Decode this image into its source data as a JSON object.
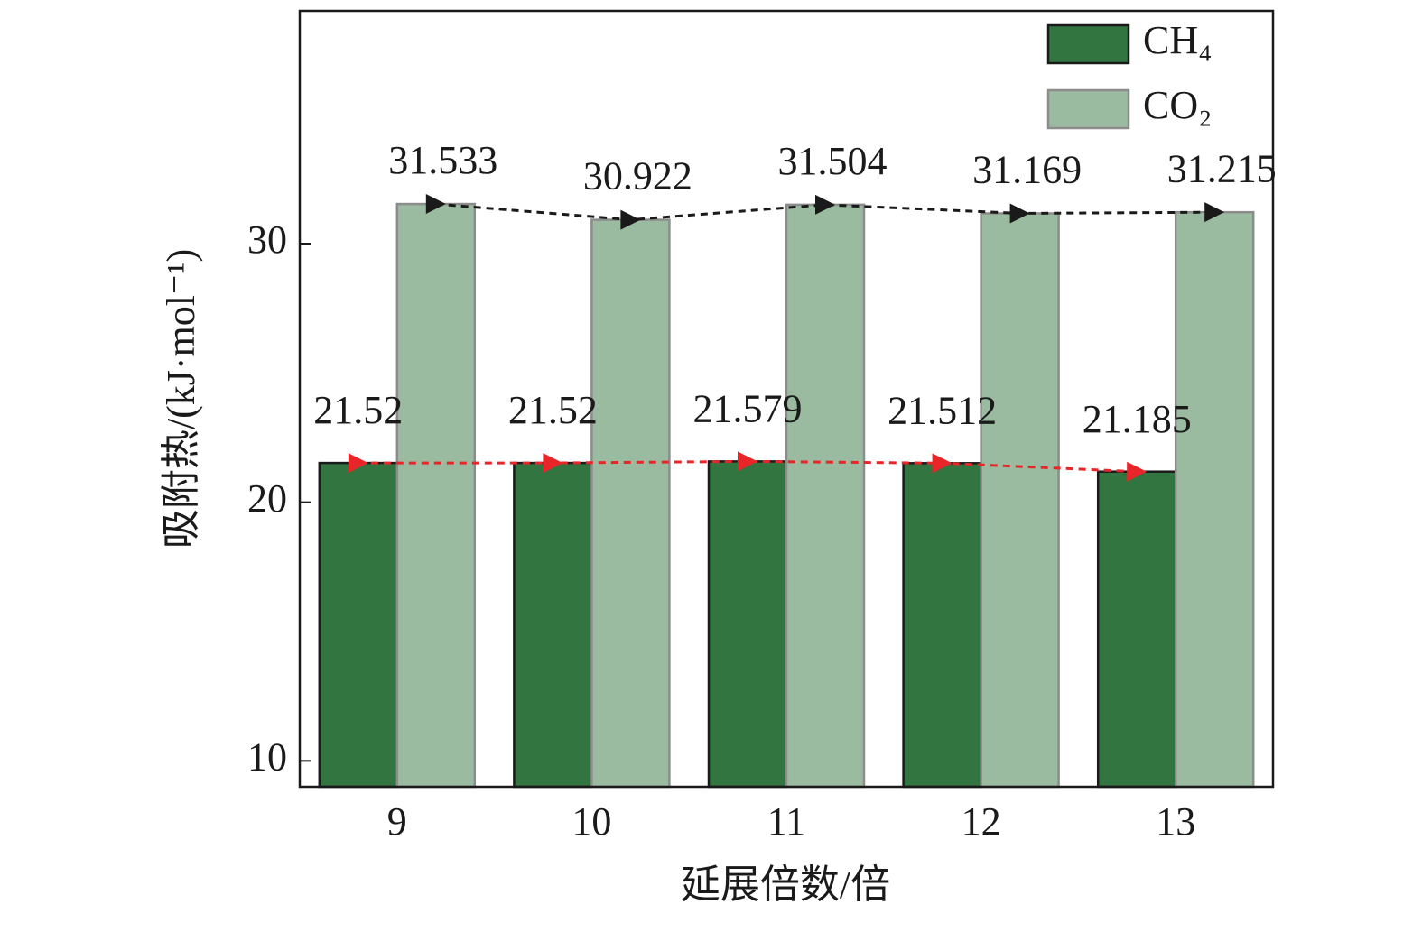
{
  "chart_data": {
    "type": "bar",
    "xlabel": "延展倍数/倍",
    "ylabel": "吸附热/(kJ·mol⁻¹)",
    "categories": [
      "9",
      "10",
      "11",
      "12",
      "13"
    ],
    "series": [
      {
        "name": "CH₄",
        "color": "#327540",
        "edge": "#1a1a1a",
        "line_color": "#e8262a",
        "values": [
          21.52,
          21.52,
          21.579,
          21.512,
          21.185
        ]
      },
      {
        "name": "CO₂",
        "color": "#9bbba0",
        "edge": "#8c8c8c",
        "line_color": "#1a1a1a",
        "values": [
          31.533,
          30.922,
          31.504,
          31.169,
          31.215
        ]
      }
    ],
    "ylim": [
      9,
      39
    ],
    "yticks": [
      10,
      20,
      30
    ],
    "trend_lines": true,
    "value_labels_shown": true,
    "legend": "upper right",
    "grid": false
  }
}
